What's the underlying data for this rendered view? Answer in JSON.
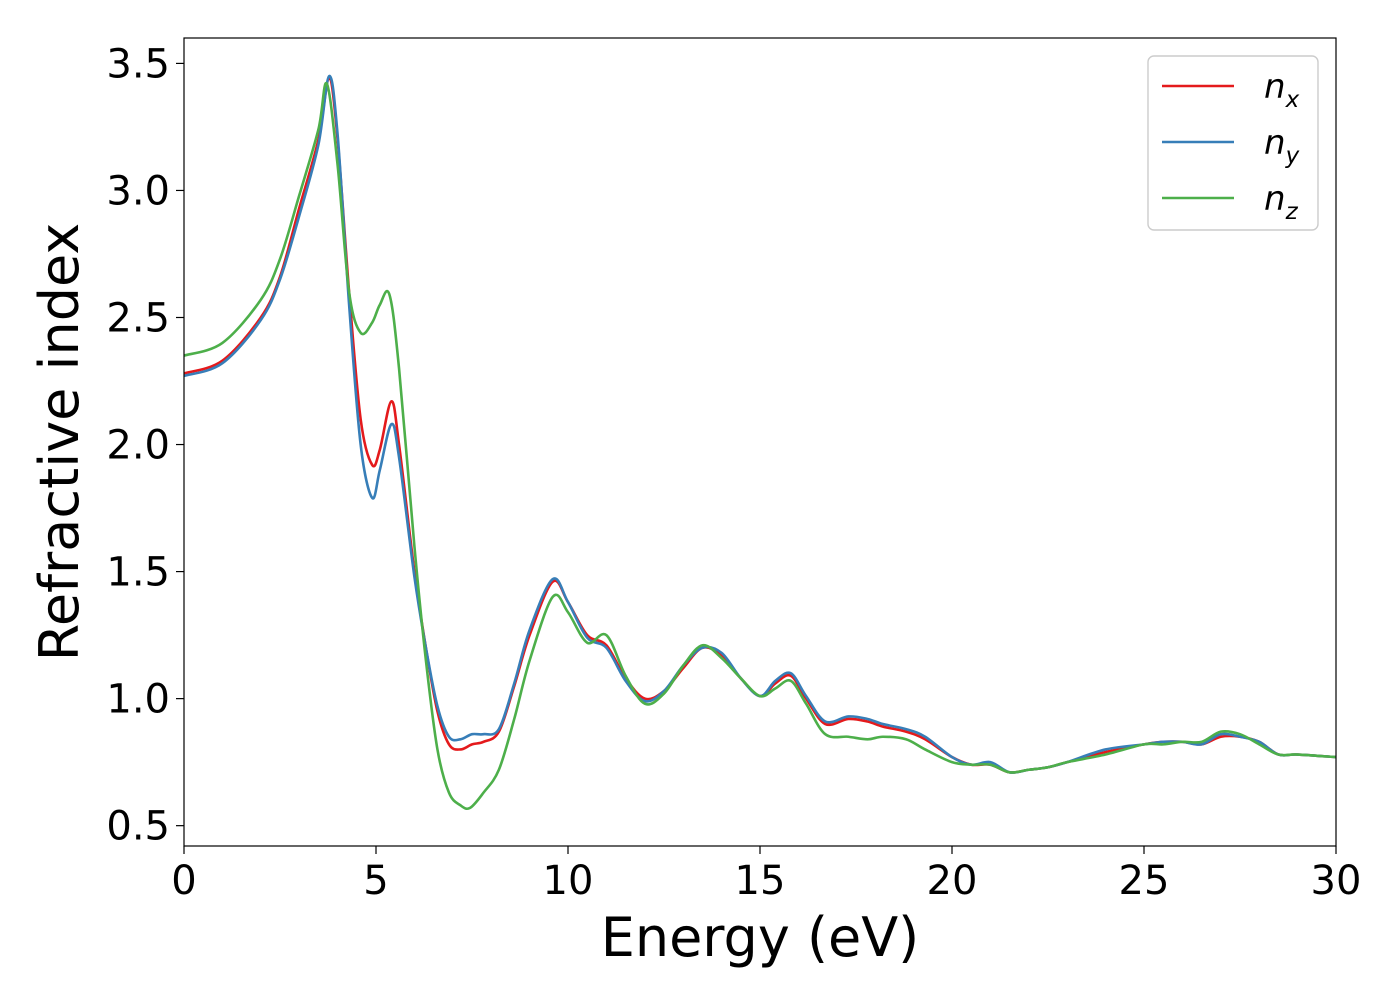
{
  "chart_data": {
    "type": "line",
    "title": "",
    "xlabel": "Energy (eV)",
    "ylabel": "Refractive index",
    "xlim": [
      0,
      30
    ],
    "ylim": [
      0.42,
      3.6
    ],
    "xticks": [
      0,
      5,
      10,
      15,
      20,
      25,
      30
    ],
    "yticks": [
      0.5,
      1.0,
      1.5,
      2.0,
      2.5,
      3.0,
      3.5
    ],
    "xtick_labels": [
      "0",
      "5",
      "10",
      "15",
      "20",
      "25",
      "30"
    ],
    "ytick_labels": [
      "0.5",
      "1.0",
      "1.5",
      "2.0",
      "2.5",
      "3.0",
      "3.5"
    ],
    "grid": false,
    "legend_position": "top-right",
    "series": [
      {
        "name": "n_x",
        "name_main": "n",
        "name_sub": "x",
        "color": "#e41a1c",
        "x": [
          0,
          1,
          2,
          2.5,
          3,
          3.5,
          3.78,
          4.0,
          4.3,
          4.6,
          4.9,
          5.1,
          5.4,
          5.6,
          6.0,
          6.3,
          6.6,
          6.9,
          7.2,
          7.5,
          7.8,
          8.2,
          8.6,
          9.0,
          9.6,
          10.0,
          10.5,
          11.0,
          11.5,
          12.0,
          12.5,
          13.0,
          13.5,
          14.0,
          14.5,
          15.0,
          15.4,
          15.8,
          16.2,
          16.7,
          17.3,
          17.8,
          18.2,
          18.8,
          19.3,
          20.0,
          20.5,
          21.0,
          21.5,
          22.0,
          22.5,
          23.0,
          24.0,
          25.0,
          25.5,
          26.0,
          26.5,
          27.0,
          27.5,
          28.0,
          28.5,
          29.0,
          30.0
        ],
        "y": [
          2.28,
          2.33,
          2.5,
          2.66,
          2.93,
          3.2,
          3.44,
          3.2,
          2.6,
          2.1,
          1.92,
          1.98,
          2.17,
          2.0,
          1.5,
          1.2,
          0.95,
          0.82,
          0.8,
          0.82,
          0.83,
          0.87,
          1.05,
          1.25,
          1.46,
          1.38,
          1.25,
          1.21,
          1.08,
          1.0,
          1.03,
          1.12,
          1.2,
          1.17,
          1.08,
          1.01,
          1.06,
          1.09,
          1.0,
          0.9,
          0.92,
          0.91,
          0.89,
          0.87,
          0.84,
          0.77,
          0.74,
          0.74,
          0.71,
          0.72,
          0.73,
          0.75,
          0.79,
          0.82,
          0.83,
          0.83,
          0.82,
          0.85,
          0.85,
          0.83,
          0.78,
          0.78,
          0.77
        ]
      },
      {
        "name": "n_y",
        "name_main": "n",
        "name_sub": "y",
        "color": "#377eb8",
        "x": [
          0,
          1,
          2,
          2.5,
          3,
          3.5,
          3.78,
          4.0,
          4.3,
          4.6,
          4.9,
          5.1,
          5.4,
          5.6,
          6.0,
          6.3,
          6.6,
          6.9,
          7.2,
          7.5,
          7.8,
          8.2,
          8.6,
          9.0,
          9.6,
          10.0,
          10.5,
          11.0,
          11.5,
          12.0,
          12.5,
          13.0,
          13.5,
          14.0,
          14.5,
          15.0,
          15.4,
          15.8,
          16.2,
          16.7,
          17.3,
          17.8,
          18.2,
          18.8,
          19.3,
          20.0,
          20.5,
          21.0,
          21.5,
          22.0,
          22.5,
          23.0,
          24.0,
          25.0,
          25.5,
          26.0,
          26.5,
          27.0,
          27.5,
          28.0,
          28.5,
          29.0,
          30.0
        ],
        "y": [
          2.27,
          2.32,
          2.49,
          2.65,
          2.9,
          3.18,
          3.45,
          3.22,
          2.55,
          2.0,
          1.79,
          1.9,
          2.08,
          1.95,
          1.48,
          1.2,
          0.97,
          0.85,
          0.84,
          0.86,
          0.86,
          0.88,
          1.06,
          1.27,
          1.47,
          1.38,
          1.24,
          1.2,
          1.07,
          0.99,
          1.03,
          1.13,
          1.2,
          1.18,
          1.08,
          1.01,
          1.07,
          1.1,
          1.01,
          0.91,
          0.93,
          0.92,
          0.9,
          0.88,
          0.85,
          0.77,
          0.74,
          0.75,
          0.71,
          0.72,
          0.73,
          0.75,
          0.8,
          0.82,
          0.83,
          0.83,
          0.82,
          0.86,
          0.85,
          0.83,
          0.78,
          0.78,
          0.77
        ]
      },
      {
        "name": "n_z",
        "name_main": "n",
        "name_sub": "z",
        "color": "#4daf4a",
        "x": [
          0,
          1,
          2,
          2.5,
          3,
          3.5,
          3.72,
          4.0,
          4.3,
          4.6,
          4.9,
          5.1,
          5.35,
          5.6,
          6.0,
          6.3,
          6.6,
          6.9,
          7.2,
          7.45,
          7.8,
          8.2,
          8.6,
          9.0,
          9.6,
          10.0,
          10.5,
          11.0,
          11.5,
          12.0,
          12.5,
          13.0,
          13.5,
          14.0,
          14.5,
          15.0,
          15.4,
          15.8,
          16.2,
          16.7,
          17.3,
          17.8,
          18.2,
          18.8,
          19.3,
          20.0,
          20.5,
          21.0,
          21.5,
          22.0,
          22.5,
          23.0,
          24.0,
          25.0,
          25.5,
          26.0,
          26.5,
          27.0,
          27.5,
          28.0,
          28.5,
          29.0,
          30.0
        ],
        "y": [
          2.35,
          2.4,
          2.57,
          2.73,
          2.98,
          3.24,
          3.42,
          3.1,
          2.6,
          2.44,
          2.48,
          2.55,
          2.59,
          2.3,
          1.6,
          1.15,
          0.8,
          0.63,
          0.58,
          0.57,
          0.63,
          0.72,
          0.92,
          1.15,
          1.4,
          1.34,
          1.22,
          1.25,
          1.09,
          0.98,
          1.02,
          1.13,
          1.21,
          1.16,
          1.08,
          1.01,
          1.04,
          1.07,
          0.98,
          0.86,
          0.85,
          0.84,
          0.85,
          0.84,
          0.8,
          0.75,
          0.74,
          0.74,
          0.71,
          0.72,
          0.73,
          0.75,
          0.78,
          0.82,
          0.82,
          0.83,
          0.83,
          0.87,
          0.86,
          0.82,
          0.78,
          0.78,
          0.77
        ]
      }
    ]
  }
}
